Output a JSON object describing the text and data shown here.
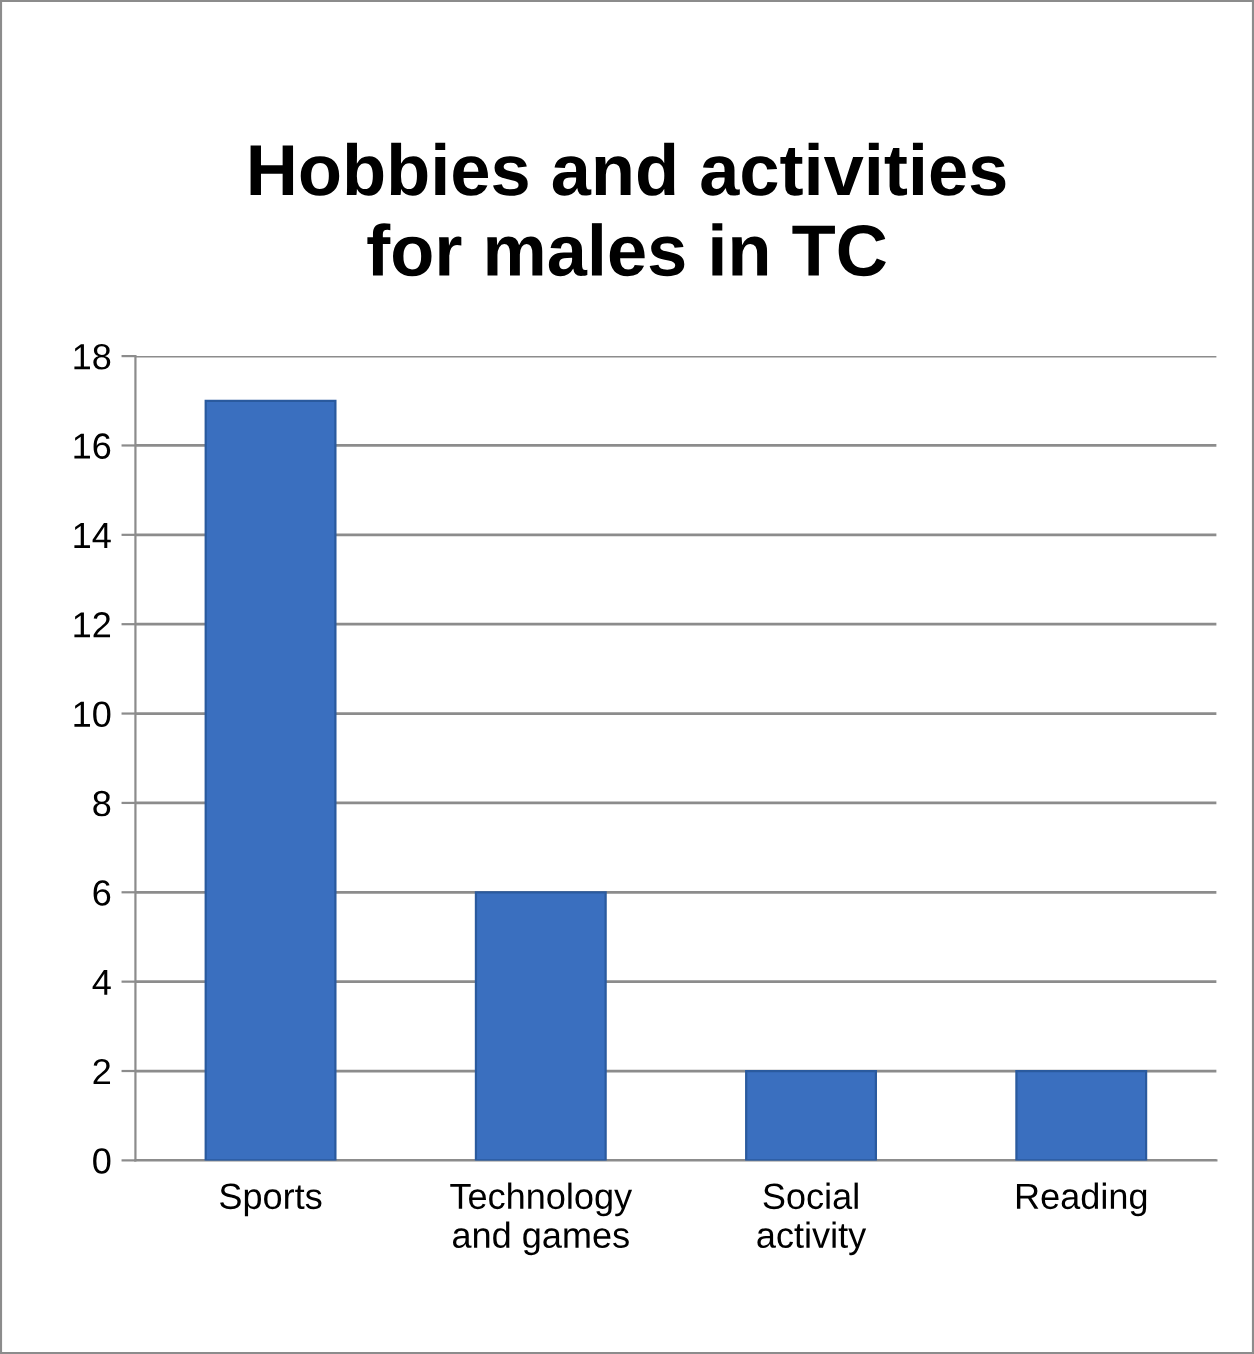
{
  "chart_data": {
    "type": "bar",
    "title": "Hobbies and activities\nfor males in TC",
    "categories": [
      "Sports",
      "Technology\nand games",
      "Social\nactivity",
      "Reading"
    ],
    "values": [
      17,
      6,
      2,
      2
    ],
    "color": "#3a6fbf",
    "ylim": [
      0,
      18
    ],
    "yticks": [
      0,
      2,
      4,
      6,
      8,
      10,
      12,
      14,
      16,
      18
    ],
    "grid": "y",
    "legend": false
  }
}
